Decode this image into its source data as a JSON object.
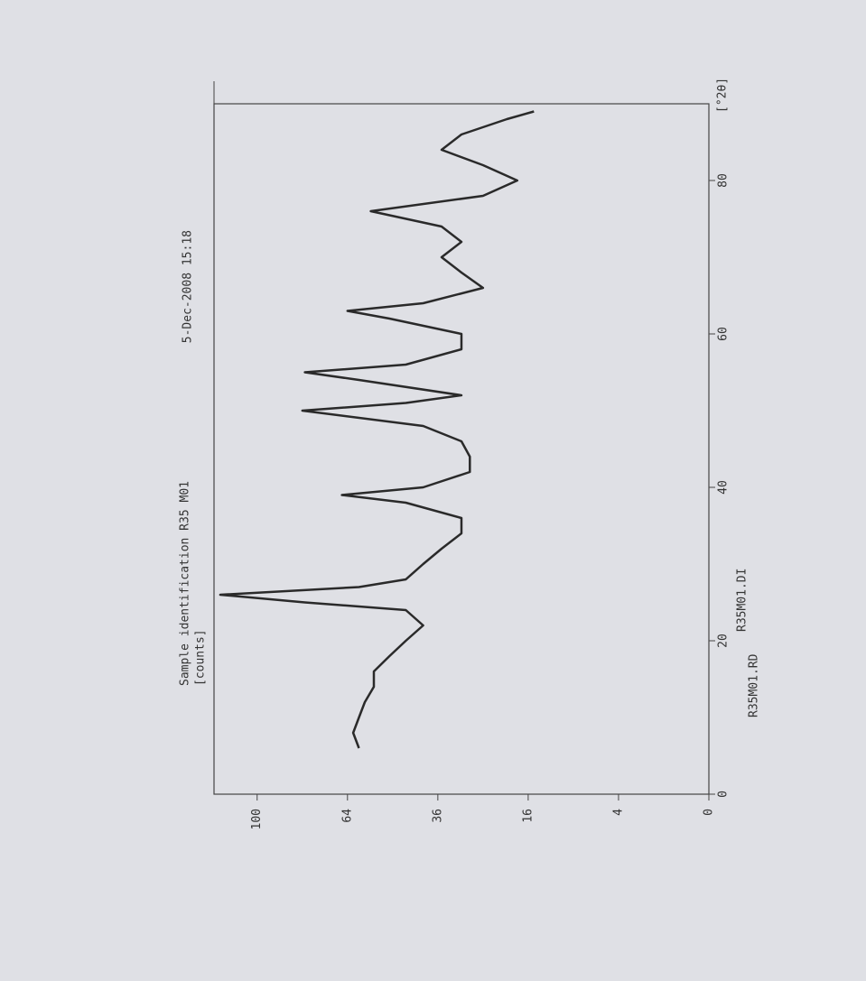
{
  "chart_data": {
    "type": "line",
    "title": "Sample identification R35 M01",
    "subtitle": "5-Dec-2008 15:18",
    "y_label": "[counts]",
    "x_label": "[°2θ]",
    "footer_left": "R35M01.RD",
    "footer_right": "R35M01.DI",
    "x": [
      6,
      8,
      10,
      12,
      14,
      16,
      18,
      20,
      22,
      24,
      25,
      26,
      27,
      28,
      30,
      32,
      34,
      36,
      38,
      39,
      40,
      42,
      44,
      46,
      48,
      50,
      51,
      52,
      54,
      55,
      56,
      58,
      60,
      62,
      63,
      64,
      66,
      68,
      70,
      72,
      74,
      76,
      78,
      80,
      82,
      84,
      86,
      88,
      89
    ],
    "values": [
      60,
      62,
      60,
      58,
      55,
      55,
      50,
      45,
      40,
      45,
      80,
      117,
      60,
      45,
      40,
      35,
      30,
      30,
      45,
      66,
      40,
      28,
      28,
      30,
      40,
      81,
      45,
      30,
      60,
      80,
      45,
      30,
      30,
      50,
      64,
      40,
      25,
      30,
      35,
      30,
      35,
      56,
      25,
      18,
      25,
      35,
      30,
      20,
      15
    ],
    "color": "#2a2a2a",
    "xlim": [
      0,
      90
    ],
    "xticks": [
      0,
      20,
      40,
      60,
      80
    ],
    "ylim": [
      0,
      120
    ],
    "yticks": [
      0,
      4,
      16,
      36,
      64,
      100
    ],
    "yscale": "sqrt"
  }
}
